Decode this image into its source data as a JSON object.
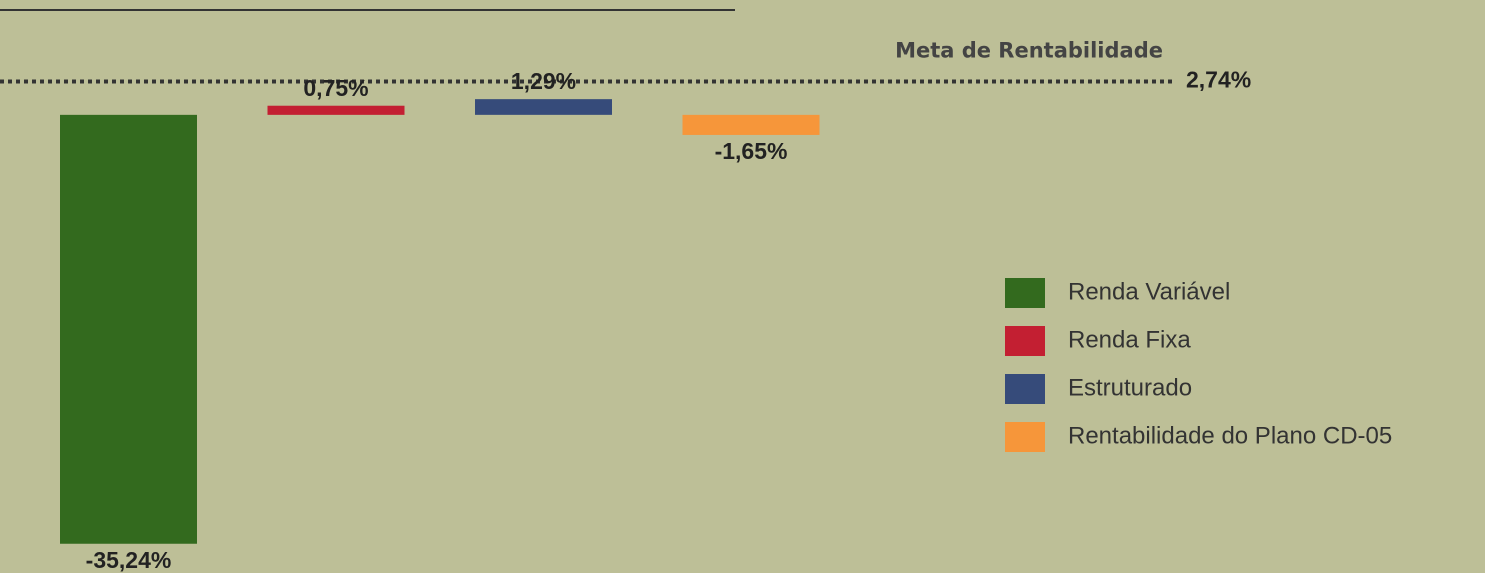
{
  "chart_data": {
    "type": "bar",
    "categories": [
      "Renda Variável",
      "Renda Fixa",
      "Estruturado",
      "Rentabilidade do Plano CD-05"
    ],
    "values": [
      -35.24,
      0.75,
      1.29,
      -1.65
    ],
    "value_labels": [
      "-35,24%",
      "0,75%",
      "1,29%",
      "-1,65%"
    ],
    "colors": [
      "#336a1e",
      "#c31f32",
      "#364b7a",
      "#f6963a"
    ],
    "ylim": [
      -36,
      5
    ],
    "target": {
      "label": "Meta de Rentabilidade",
      "value": 2.74,
      "value_label": "2,74%"
    },
    "legend": "right"
  }
}
